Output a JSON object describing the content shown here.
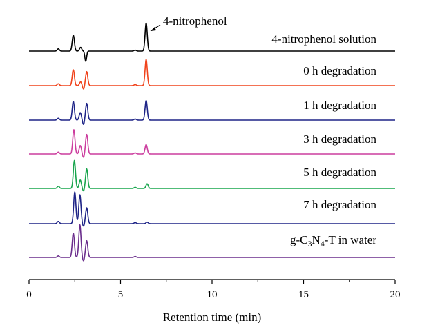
{
  "chart_data": {
    "type": "line",
    "title": "",
    "xlabel": "Retention time (min)",
    "ylabel": "",
    "xlim": [
      0,
      20
    ],
    "x_ticks": [
      "0",
      "5",
      "10",
      "15",
      "20"
    ],
    "grid": false,
    "annotation": {
      "text": "4-nitrophenol",
      "points_to_x": 6.4
    },
    "series": [
      {
        "name": "4-nitrophenol solution",
        "color": "#000000",
        "peaks": [
          {
            "x": 1.6,
            "h": 0.12
          },
          {
            "x": 2.42,
            "h": 0.85
          },
          {
            "x": 2.82,
            "h": 0.2
          },
          {
            "x": 3.1,
            "h": -0.55
          },
          {
            "x": 5.8,
            "h": 0.05
          },
          {
            "x": 6.4,
            "h": 1.5
          }
        ]
      },
      {
        "name": "0 h degradation",
        "color": "#f0431c",
        "peaks": [
          {
            "x": 1.6,
            "h": 0.1
          },
          {
            "x": 2.42,
            "h": 0.85
          },
          {
            "x": 2.82,
            "h": 0.2
          },
          {
            "x": 2.98,
            "h": -0.2
          },
          {
            "x": 3.15,
            "h": 0.75
          },
          {
            "x": 5.8,
            "h": 0.06
          },
          {
            "x": 6.4,
            "h": 1.4
          }
        ]
      },
      {
        "name": "1 h degradation",
        "color": "#1e2487",
        "peaks": [
          {
            "x": 1.6,
            "h": 0.1
          },
          {
            "x": 2.42,
            "h": 1.0
          },
          {
            "x": 2.8,
            "h": 0.4
          },
          {
            "x": 2.98,
            "h": -0.25
          },
          {
            "x": 3.15,
            "h": 0.9
          },
          {
            "x": 5.8,
            "h": 0.06
          },
          {
            "x": 6.4,
            "h": 1.05
          }
        ]
      },
      {
        "name": "3 h degradation",
        "color": "#cc3d9e",
        "peaks": [
          {
            "x": 1.6,
            "h": 0.1
          },
          {
            "x": 2.45,
            "h": 1.3
          },
          {
            "x": 2.8,
            "h": 0.45
          },
          {
            "x": 2.98,
            "h": -0.2
          },
          {
            "x": 3.15,
            "h": 1.05
          },
          {
            "x": 5.8,
            "h": 0.06
          },
          {
            "x": 6.4,
            "h": 0.5
          }
        ]
      },
      {
        "name": "5 h degradation",
        "color": "#17a54c",
        "peaks": [
          {
            "x": 1.6,
            "h": 0.12
          },
          {
            "x": 2.48,
            "h": 1.5
          },
          {
            "x": 2.8,
            "h": 0.45
          },
          {
            "x": 2.98,
            "h": -0.15
          },
          {
            "x": 3.15,
            "h": 1.05
          },
          {
            "x": 5.8,
            "h": 0.06
          },
          {
            "x": 6.45,
            "h": 0.25
          }
        ]
      },
      {
        "name": "7 h degradation",
        "color": "#1e2487",
        "peaks": [
          {
            "x": 1.6,
            "h": 0.12
          },
          {
            "x": 2.5,
            "h": 1.7
          },
          {
            "x": 2.78,
            "h": 1.55
          },
          {
            "x": 2.98,
            "h": -0.15
          },
          {
            "x": 3.15,
            "h": 0.85
          },
          {
            "x": 5.8,
            "h": 0.06
          },
          {
            "x": 6.45,
            "h": 0.08
          }
        ]
      },
      {
        "name": "g-C3N4-T in water",
        "color": "#6a2d8c",
        "label_parts": {
          "prefix": "g-C",
          "sub1": "3",
          "mid": "N",
          "sub2": "4",
          "suffix": "-T in water"
        },
        "peaks": [
          {
            "x": 1.6,
            "h": 0.08
          },
          {
            "x": 2.42,
            "h": 1.3
          },
          {
            "x": 2.78,
            "h": 1.75
          },
          {
            "x": 2.98,
            "h": -0.2
          },
          {
            "x": 3.15,
            "h": 0.9
          },
          {
            "x": 5.8,
            "h": 0.05
          }
        ]
      }
    ]
  }
}
